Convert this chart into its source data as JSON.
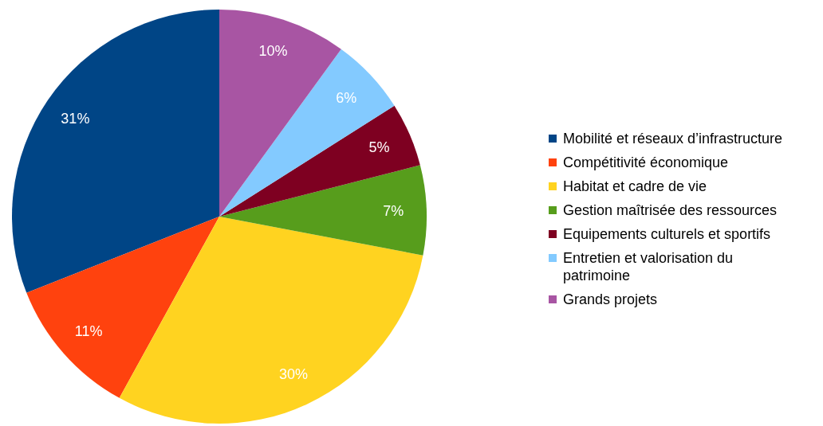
{
  "chart_data": {
    "type": "pie",
    "categories": [
      "Mobilité et réseaux d’infrastructure",
      "Compétitivité économique",
      "Habitat et cadre de vie",
      "Gestion maîtrisée des ressources",
      "Equipements culturels et sportifs",
      "Entretien et valorisation du patrimoine",
      "Grands projets"
    ],
    "values": [
      31,
      11,
      30,
      7,
      5,
      6,
      10
    ],
    "colors": [
      "#004586",
      "#ff420e",
      "#ffd320",
      "#579d1c",
      "#7e0021",
      "#83caff",
      "#a855a3"
    ],
    "value_labels": [
      "31%",
      "11%",
      "30%",
      "7%",
      "5%",
      "6%",
      "10%"
    ],
    "legend": "right"
  }
}
